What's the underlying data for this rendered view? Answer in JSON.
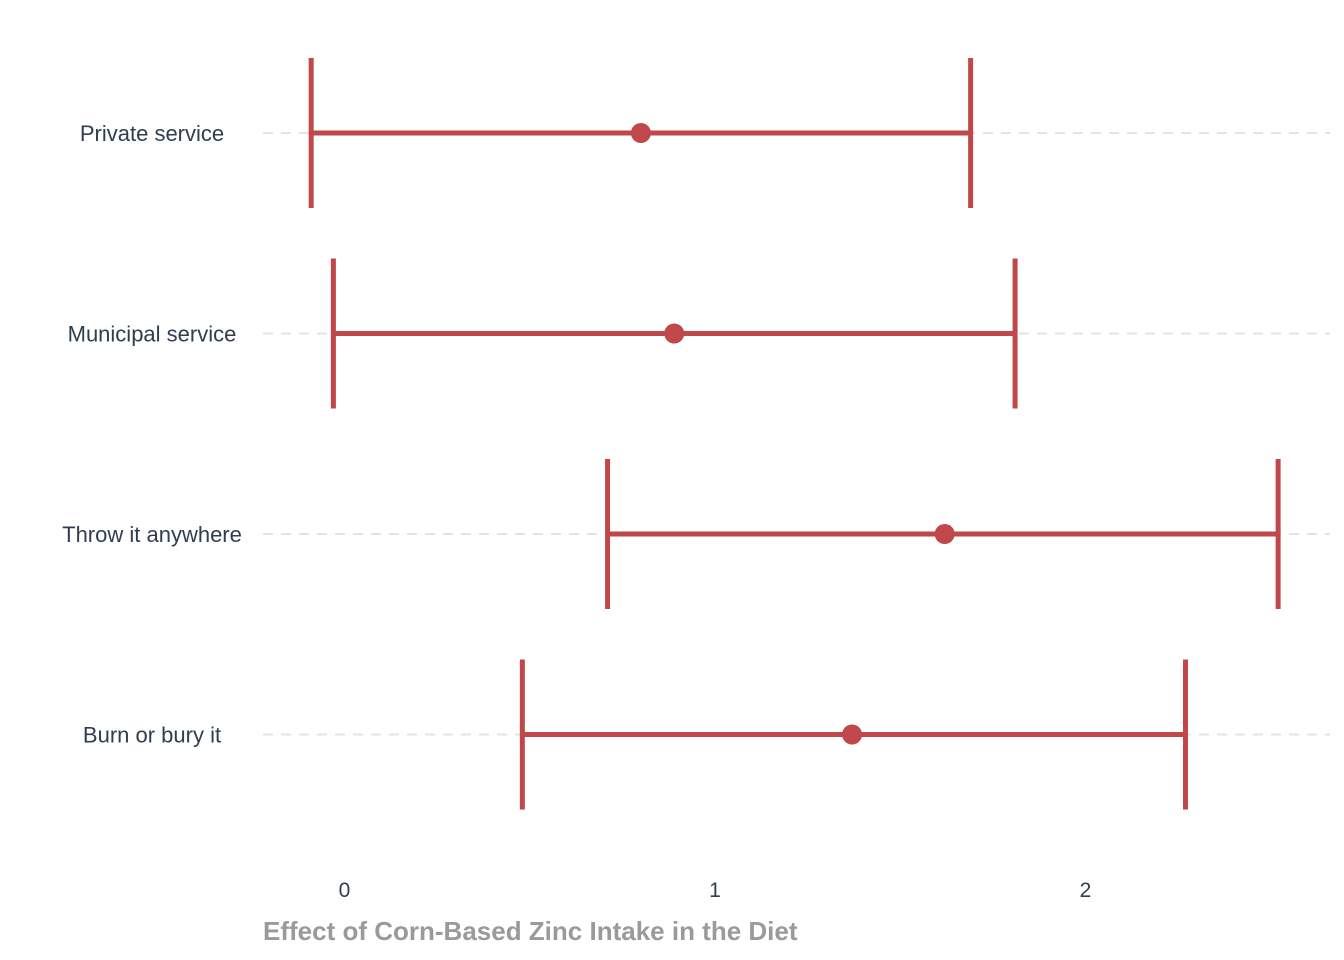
{
  "chart_data": {
    "type": "errorbar",
    "categories": [
      "Private service",
      "Municipal service",
      "Throw it anywhere",
      "Burn or bury it"
    ],
    "estimates": [
      0.8,
      0.89,
      1.62,
      1.37
    ],
    "lower": [
      -0.09,
      -0.03,
      0.71,
      0.48
    ],
    "upper": [
      1.69,
      1.81,
      2.52,
      2.27
    ],
    "x_ticks": [
      0,
      1,
      2
    ],
    "x_tick_labels": [
      "0",
      "1",
      "2"
    ],
    "xlim": [
      -0.22,
      2.66
    ],
    "xlabel": "Effect of Corn-Based Zinc Intake in the Diet",
    "ylabel": "",
    "grid": "horizontal dashed",
    "colors": {
      "series": "#c0474a",
      "grid": "#e3e3e3",
      "text": "#2f3e4f",
      "axis_title": "#9a9a9a"
    }
  }
}
